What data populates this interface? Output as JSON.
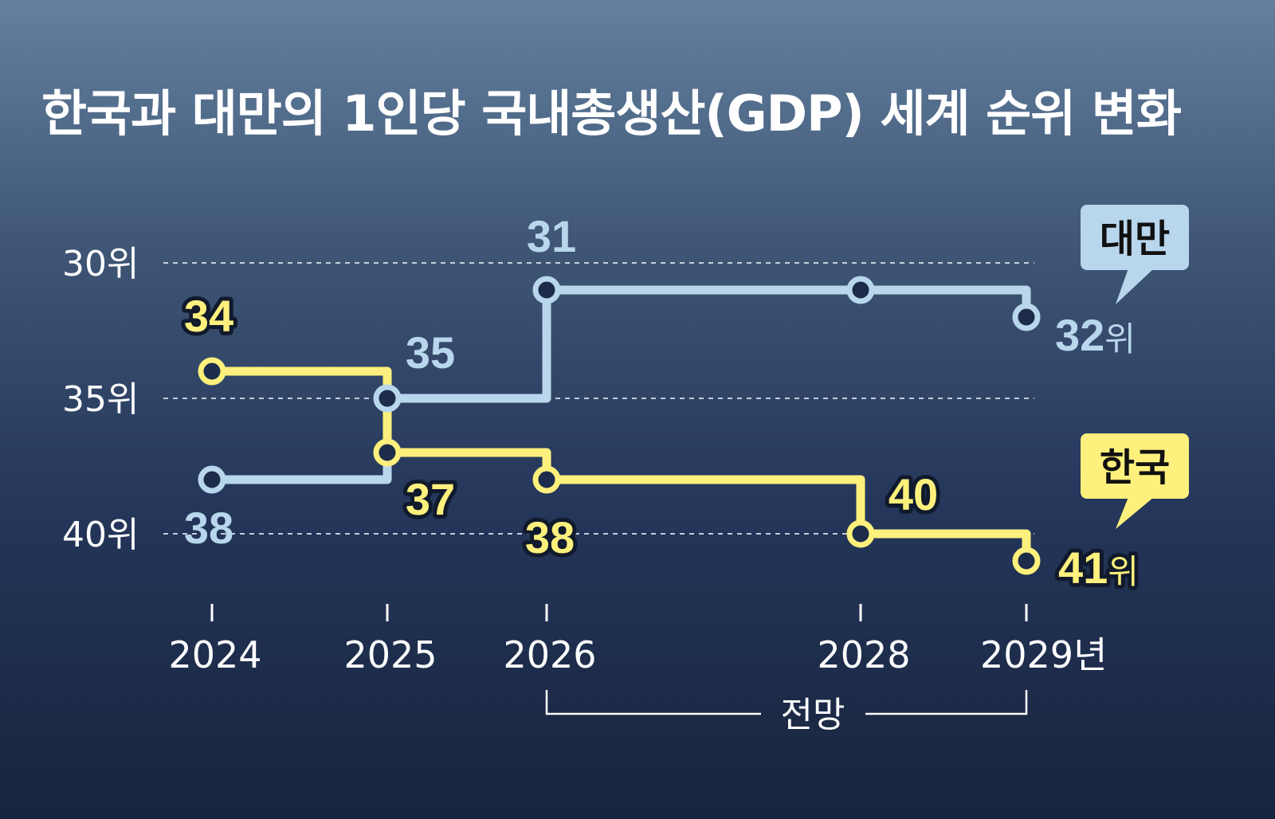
{
  "chart_data": {
    "type": "line",
    "title": "한국과 대만의 1인당 국내총생산(GDP) 세계 순위 변화",
    "y_ticks": [
      "30위",
      "35위",
      "40위"
    ],
    "x_ticks": [
      "2024",
      "2025",
      "2026",
      "2028",
      "2029년"
    ],
    "x": [
      2024,
      2025,
      2026,
      2028,
      2029
    ],
    "ylim": [
      30,
      41
    ],
    "y_reversed": true,
    "grid": true,
    "forecast_label": "전망",
    "forecast_range": [
      2026,
      2029
    ],
    "series": [
      {
        "name": "대만",
        "color": "#b8d6ec",
        "values": [
          38,
          35,
          31,
          31,
          32
        ],
        "point_labels": [
          "38",
          "35",
          "31",
          "",
          "32위"
        ]
      },
      {
        "name": "한국",
        "color": "#fdf07c",
        "values": [
          34,
          37,
          38,
          40,
          41
        ],
        "point_labels": [
          "34",
          "37",
          "38",
          "40",
          "41위"
        ]
      }
    ]
  }
}
